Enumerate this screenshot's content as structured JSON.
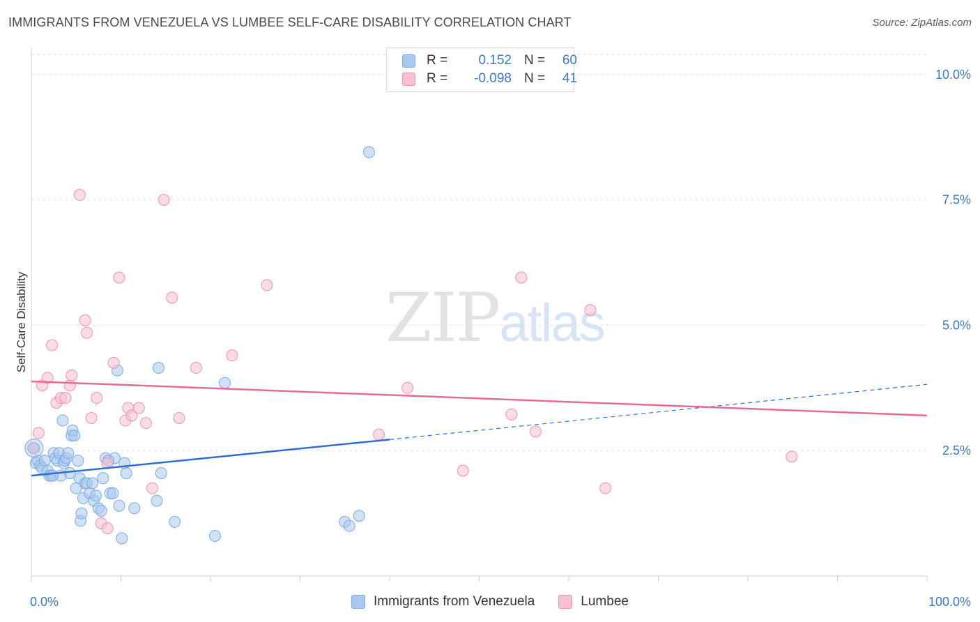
{
  "title": "IMMIGRANTS FROM VENEZUELA VS LUMBEE SELF-CARE DISABILITY CORRELATION CHART",
  "source": "Source: ZipAtlas.com",
  "watermark": {
    "zip": "ZIP",
    "atlas": "atlas"
  },
  "legend": {
    "rows": [
      {
        "r_label": "R =",
        "r_value": "0.152",
        "n_label": "N =",
        "n_value": "60",
        "color": "#a9c8ef",
        "border": "#7aaae6"
      },
      {
        "r_label": "R =",
        "r_value": "-0.098",
        "n_label": "N =",
        "n_value": "41",
        "color": "#f7bfd0",
        "border": "#eb93b1"
      }
    ]
  },
  "chart_data": {
    "type": "scatter",
    "title": "IMMIGRANTS FROM VENEZUELA VS LUMBEE SELF-CARE DISABILITY CORRELATION CHART",
    "xlabel": "",
    "ylabel": "Self-Care Disability",
    "xlim": [
      0,
      100
    ],
    "ylim": [
      0,
      10.4
    ],
    "x_tick_labels": [
      {
        "value": 0,
        "label": "0.0%"
      },
      {
        "value": 100,
        "label": "100.0%"
      }
    ],
    "y_tick_labels": [
      {
        "value": 2.5,
        "label": "2.5%"
      },
      {
        "value": 5.0,
        "label": "5.0%"
      },
      {
        "value": 7.5,
        "label": "7.5%"
      },
      {
        "value": 10.0,
        "label": "10.0%"
      }
    ],
    "series": [
      {
        "name": "Immigrants from Venezuela",
        "color": "#7aaae6",
        "fill": "#a9c8ef",
        "trend_color": "#2f6fcc",
        "trend": {
          "x0": 0,
          "y0": 2.0,
          "x1": 40,
          "y1": 2.72,
          "dash_to_x": 100,
          "dash_to_y": 3.82
        },
        "points": [
          [
            0.3,
            2.55
          ],
          [
            0.5,
            2.25
          ],
          [
            0.7,
            2.3
          ],
          [
            1.0,
            2.2
          ],
          [
            1.2,
            2.15
          ],
          [
            1.5,
            2.3
          ],
          [
            1.8,
            2.1
          ],
          [
            2.0,
            2.0
          ],
          [
            2.2,
            2.0
          ],
          [
            2.5,
            2.45
          ],
          [
            2.7,
            2.35
          ],
          [
            2.9,
            2.3
          ],
          [
            3.1,
            2.45
          ],
          [
            3.3,
            2.0
          ],
          [
            3.5,
            3.1
          ],
          [
            3.6,
            2.25
          ],
          [
            3.7,
            2.3
          ],
          [
            3.9,
            2.35
          ],
          [
            4.1,
            2.45
          ],
          [
            4.3,
            2.05
          ],
          [
            4.5,
            2.8
          ],
          [
            4.6,
            2.9
          ],
          [
            4.8,
            2.8
          ],
          [
            5.0,
            1.75
          ],
          [
            5.2,
            2.3
          ],
          [
            5.4,
            1.95
          ],
          [
            5.5,
            1.1
          ],
          [
            5.6,
            1.25
          ],
          [
            5.8,
            1.55
          ],
          [
            6.0,
            1.85
          ],
          [
            6.2,
            1.85
          ],
          [
            6.5,
            1.65
          ],
          [
            7.0,
            1.5
          ],
          [
            7.2,
            1.6
          ],
          [
            7.5,
            1.35
          ],
          [
            7.8,
            1.3
          ],
          [
            8.0,
            1.95
          ],
          [
            8.3,
            2.35
          ],
          [
            8.8,
            1.65
          ],
          [
            9.1,
            1.65
          ],
          [
            9.3,
            2.35
          ],
          [
            9.6,
            4.1
          ],
          [
            9.8,
            1.4
          ],
          [
            10.1,
            0.75
          ],
          [
            10.4,
            2.25
          ],
          [
            10.6,
            2.05
          ],
          [
            11.5,
            1.35
          ],
          [
            14.0,
            1.5
          ],
          [
            14.5,
            2.05
          ],
          [
            14.2,
            4.15
          ],
          [
            16.0,
            1.08
          ],
          [
            20.5,
            0.8
          ],
          [
            21.6,
            3.85
          ],
          [
            37.7,
            8.45
          ],
          [
            35.0,
            1.08
          ],
          [
            35.5,
            1.0
          ],
          [
            36.6,
            1.2
          ],
          [
            8.6,
            2.3
          ],
          [
            6.8,
            1.85
          ],
          [
            2.4,
            2.0
          ]
        ]
      },
      {
        "name": "Lumbee",
        "color": "#eb93b1",
        "fill": "#f7bfd0",
        "trend_color": "#e36b96",
        "trend": {
          "x0": 0,
          "y0": 3.88,
          "x1": 100,
          "y1": 3.2
        },
        "points": [
          [
            0.2,
            2.55
          ],
          [
            0.8,
            2.85
          ],
          [
            1.2,
            3.8
          ],
          [
            1.8,
            3.95
          ],
          [
            2.3,
            4.6
          ],
          [
            2.8,
            3.45
          ],
          [
            3.3,
            3.55
          ],
          [
            3.8,
            3.55
          ],
          [
            4.3,
            3.8
          ],
          [
            4.5,
            4.0
          ],
          [
            5.4,
            7.6
          ],
          [
            6.0,
            5.1
          ],
          [
            6.2,
            4.85
          ],
          [
            6.7,
            3.15
          ],
          [
            7.3,
            3.55
          ],
          [
            7.8,
            1.05
          ],
          [
            8.5,
            0.95
          ],
          [
            8.5,
            2.25
          ],
          [
            9.2,
            4.25
          ],
          [
            9.8,
            5.95
          ],
          [
            10.5,
            3.1
          ],
          [
            10.8,
            3.35
          ],
          [
            11.2,
            3.2
          ],
          [
            12.0,
            3.35
          ],
          [
            12.8,
            3.05
          ],
          [
            13.5,
            1.75
          ],
          [
            14.8,
            7.5
          ],
          [
            15.7,
            5.55
          ],
          [
            16.5,
            3.15
          ],
          [
            18.4,
            4.15
          ],
          [
            22.4,
            4.4
          ],
          [
            26.3,
            5.8
          ],
          [
            38.8,
            2.82
          ],
          [
            42.0,
            3.75
          ],
          [
            48.2,
            2.1
          ],
          [
            53.6,
            3.22
          ],
          [
            54.7,
            5.95
          ],
          [
            56.3,
            2.88
          ],
          [
            62.4,
            5.3
          ],
          [
            64.1,
            1.75
          ],
          [
            84.9,
            2.38
          ]
        ]
      }
    ]
  }
}
